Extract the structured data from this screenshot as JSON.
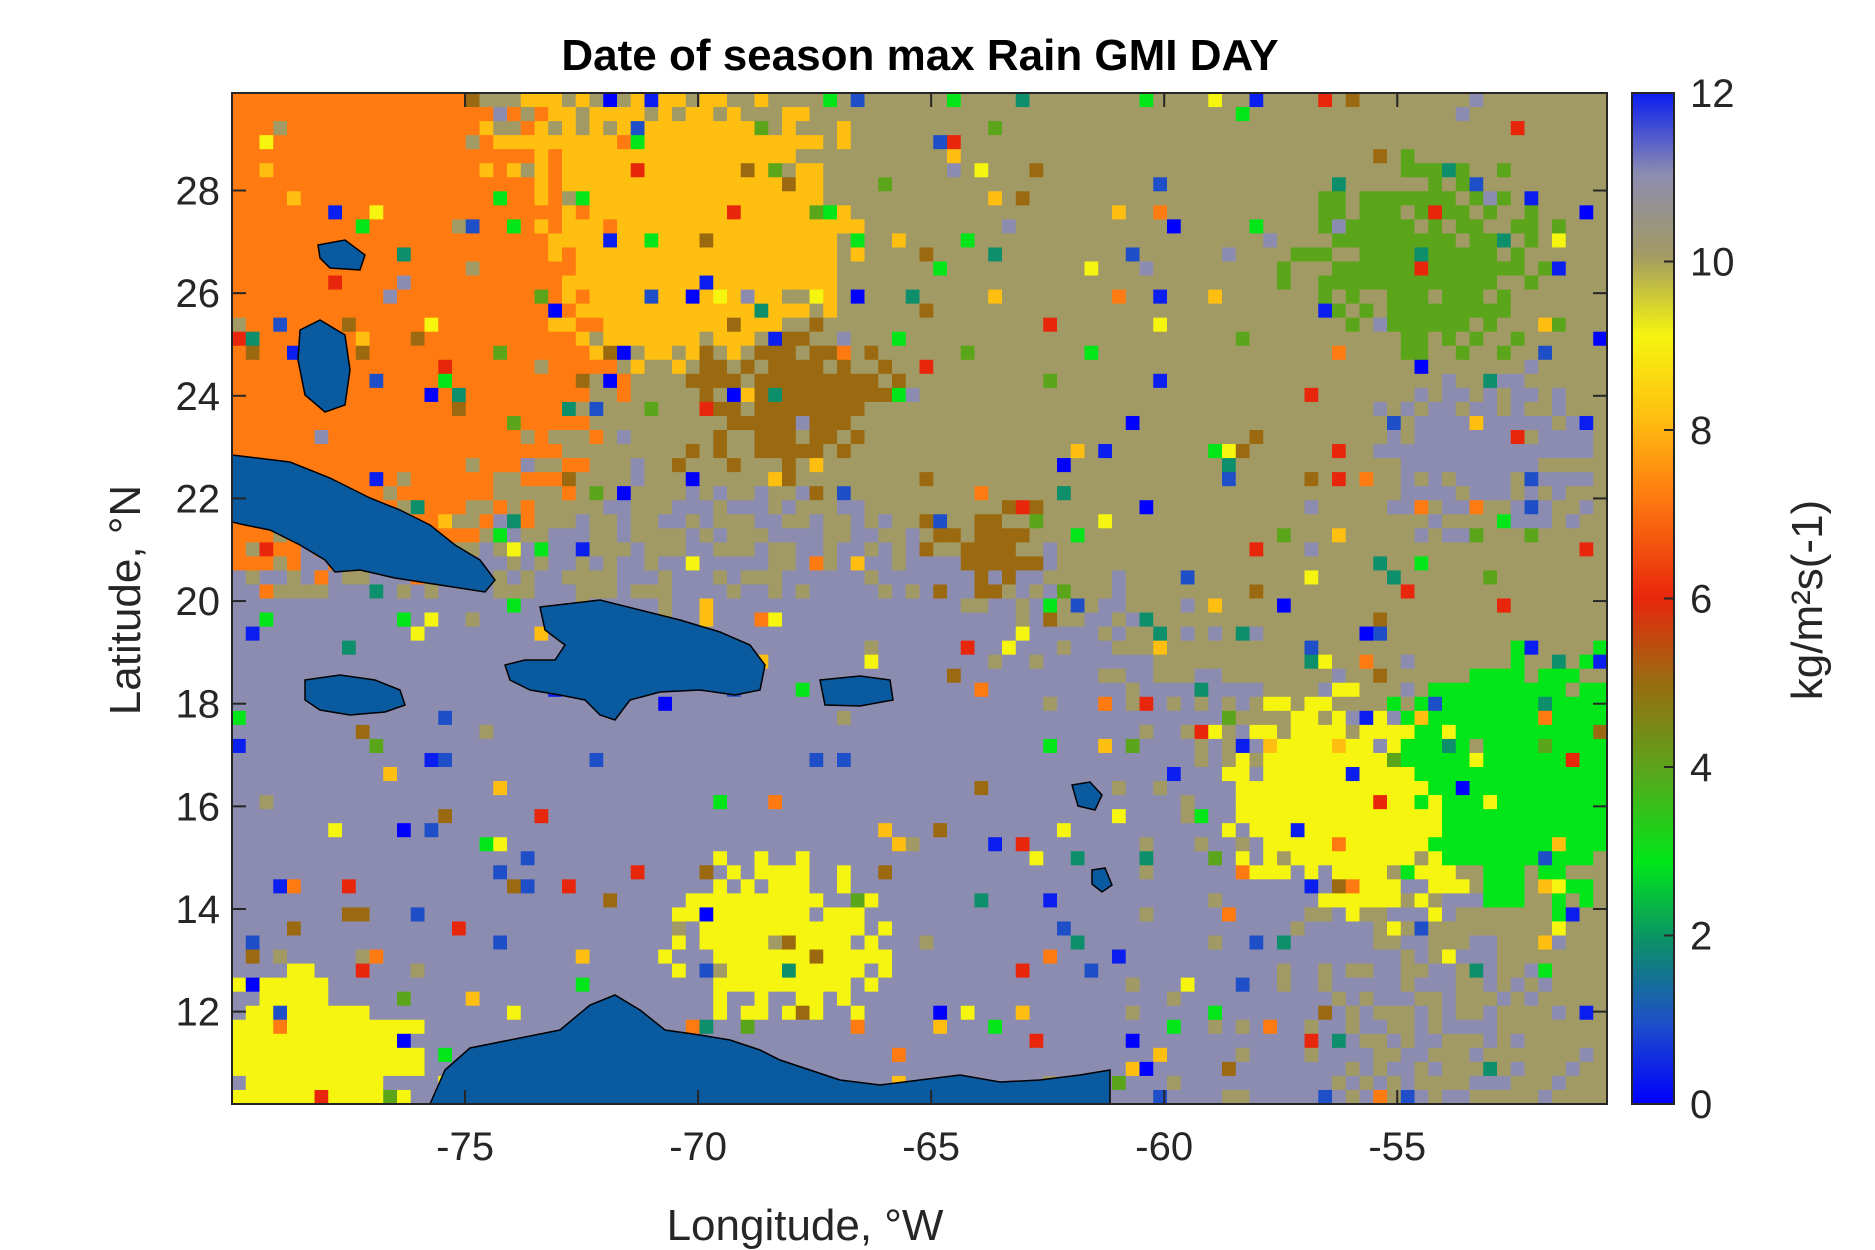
{
  "figure": {
    "title": "Date of season max Rain GMI DAY",
    "xlabel": "Longitude, °W",
    "ylabel": "Latitude, °N",
    "colorbar_label": "kg/m²s(-1)"
  },
  "axes": {
    "xlim": [
      -80,
      -50.5
    ],
    "ylim": [
      10.2,
      29.9
    ],
    "xticks": [
      -75,
      -70,
      -65,
      -60,
      -55
    ],
    "xtick_labels": [
      "-75",
      "-70",
      "-65",
      "-60",
      "-55"
    ],
    "yticks": [
      12,
      14,
      16,
      18,
      20,
      22,
      24,
      26,
      28
    ],
    "ytick_labels": [
      "12",
      "14",
      "16",
      "18",
      "20",
      "22",
      "24",
      "26",
      "28"
    ]
  },
  "colorbar": {
    "range": [
      0,
      12
    ],
    "ticks": [
      0,
      2,
      4,
      6,
      8,
      10,
      12
    ],
    "tick_labels": [
      "0",
      "2",
      "4",
      "6",
      "8",
      "10",
      "12"
    ],
    "colormap": "parula-like",
    "stops": [
      "#0000ff",
      "#1e4fc8",
      "#0c8f6a",
      "#00e619",
      "#5ba51b",
      "#9b6a10",
      "#e8260c",
      "#ff7a10",
      "#ffbf10",
      "#f5f50f",
      "#a29a64",
      "#8c8cb0",
      "#0a1ef0"
    ]
  },
  "map": {
    "region": "Caribbean Sea and western tropical Atlantic",
    "land_color": "#0a5aa0",
    "coastline_color": "#000000",
    "dominant_values": {
      "western_sea_plain": 11,
      "central_caribbean": 11,
      "northeast_ocean": 10,
      "bahamas_area": 7
    }
  }
}
